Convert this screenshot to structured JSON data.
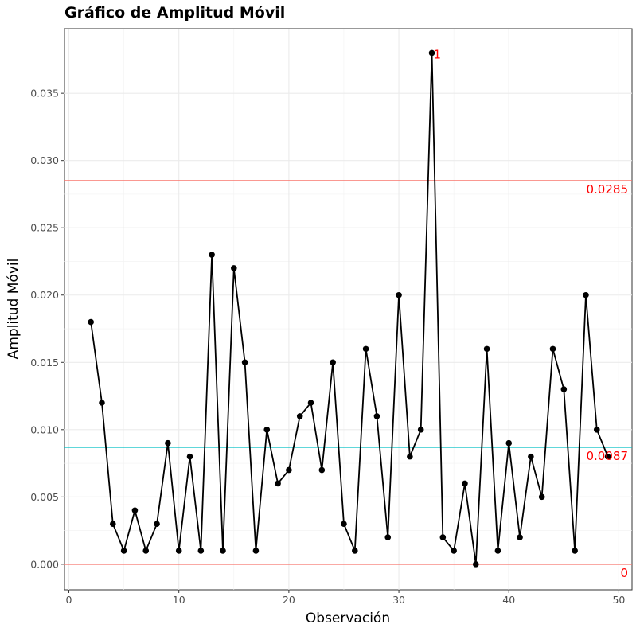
{
  "chart_data": {
    "type": "line",
    "title": "Gráfico de Amplitud Móvil",
    "xlabel": "Observación",
    "ylabel": "Amplitud Móvil",
    "xlim": [
      -0.4,
      51.2
    ],
    "ylim": [
      -0.0019,
      0.0398
    ],
    "x_ticks": [
      0,
      10,
      20,
      30,
      40,
      50
    ],
    "y_ticks": [
      0.0,
      0.005,
      0.01,
      0.015,
      0.02,
      0.025,
      0.03,
      0.035
    ],
    "y_tick_labels": [
      "0.000",
      "0.005",
      "0.010",
      "0.015",
      "0.020",
      "0.025",
      "0.030",
      "0.035"
    ],
    "grid": true,
    "series": [
      {
        "x": [
          2,
          3,
          4,
          5,
          6,
          7,
          8,
          9,
          10,
          11,
          12,
          13,
          14,
          15,
          16,
          17,
          18,
          19,
          20,
          21,
          22,
          23,
          24,
          25,
          26,
          27,
          28,
          29,
          30,
          31,
          32,
          33,
          34,
          35,
          36,
          37,
          38,
          39,
          40,
          41,
          42,
          43,
          44,
          45,
          46,
          47,
          48,
          49
        ],
        "values": [
          0.018,
          0.012,
          0.003,
          0.001,
          0.004,
          0.001,
          0.003,
          0.009,
          0.001,
          0.008,
          0.001,
          0.023,
          0.001,
          0.022,
          0.015,
          0.001,
          0.01,
          0.006,
          0.007,
          0.011,
          0.012,
          0.007,
          0.015,
          0.003,
          0.001,
          0.016,
          0.011,
          0.002,
          0.02,
          0.008,
          0.01,
          0.038,
          0.002,
          0.001,
          0.006,
          0.0,
          0.016,
          0.001,
          0.009,
          0.002,
          0.008,
          0.005,
          0.016,
          0.013,
          0.001,
          0.02,
          0.01,
          0.008
        ],
        "color": "#000000"
      }
    ],
    "reference_lines": [
      {
        "value": 0.0285,
        "label": "0.0285",
        "color": "#f8766d"
      },
      {
        "value": 0.0087,
        "label": "0.0087",
        "color": "#00bfc4"
      },
      {
        "value": 0,
        "label": "0",
        "color": "#f8766d"
      }
    ],
    "annotations": [
      {
        "x": 33,
        "y": 0.038,
        "text": "1",
        "color": "#ff0000"
      }
    ]
  }
}
